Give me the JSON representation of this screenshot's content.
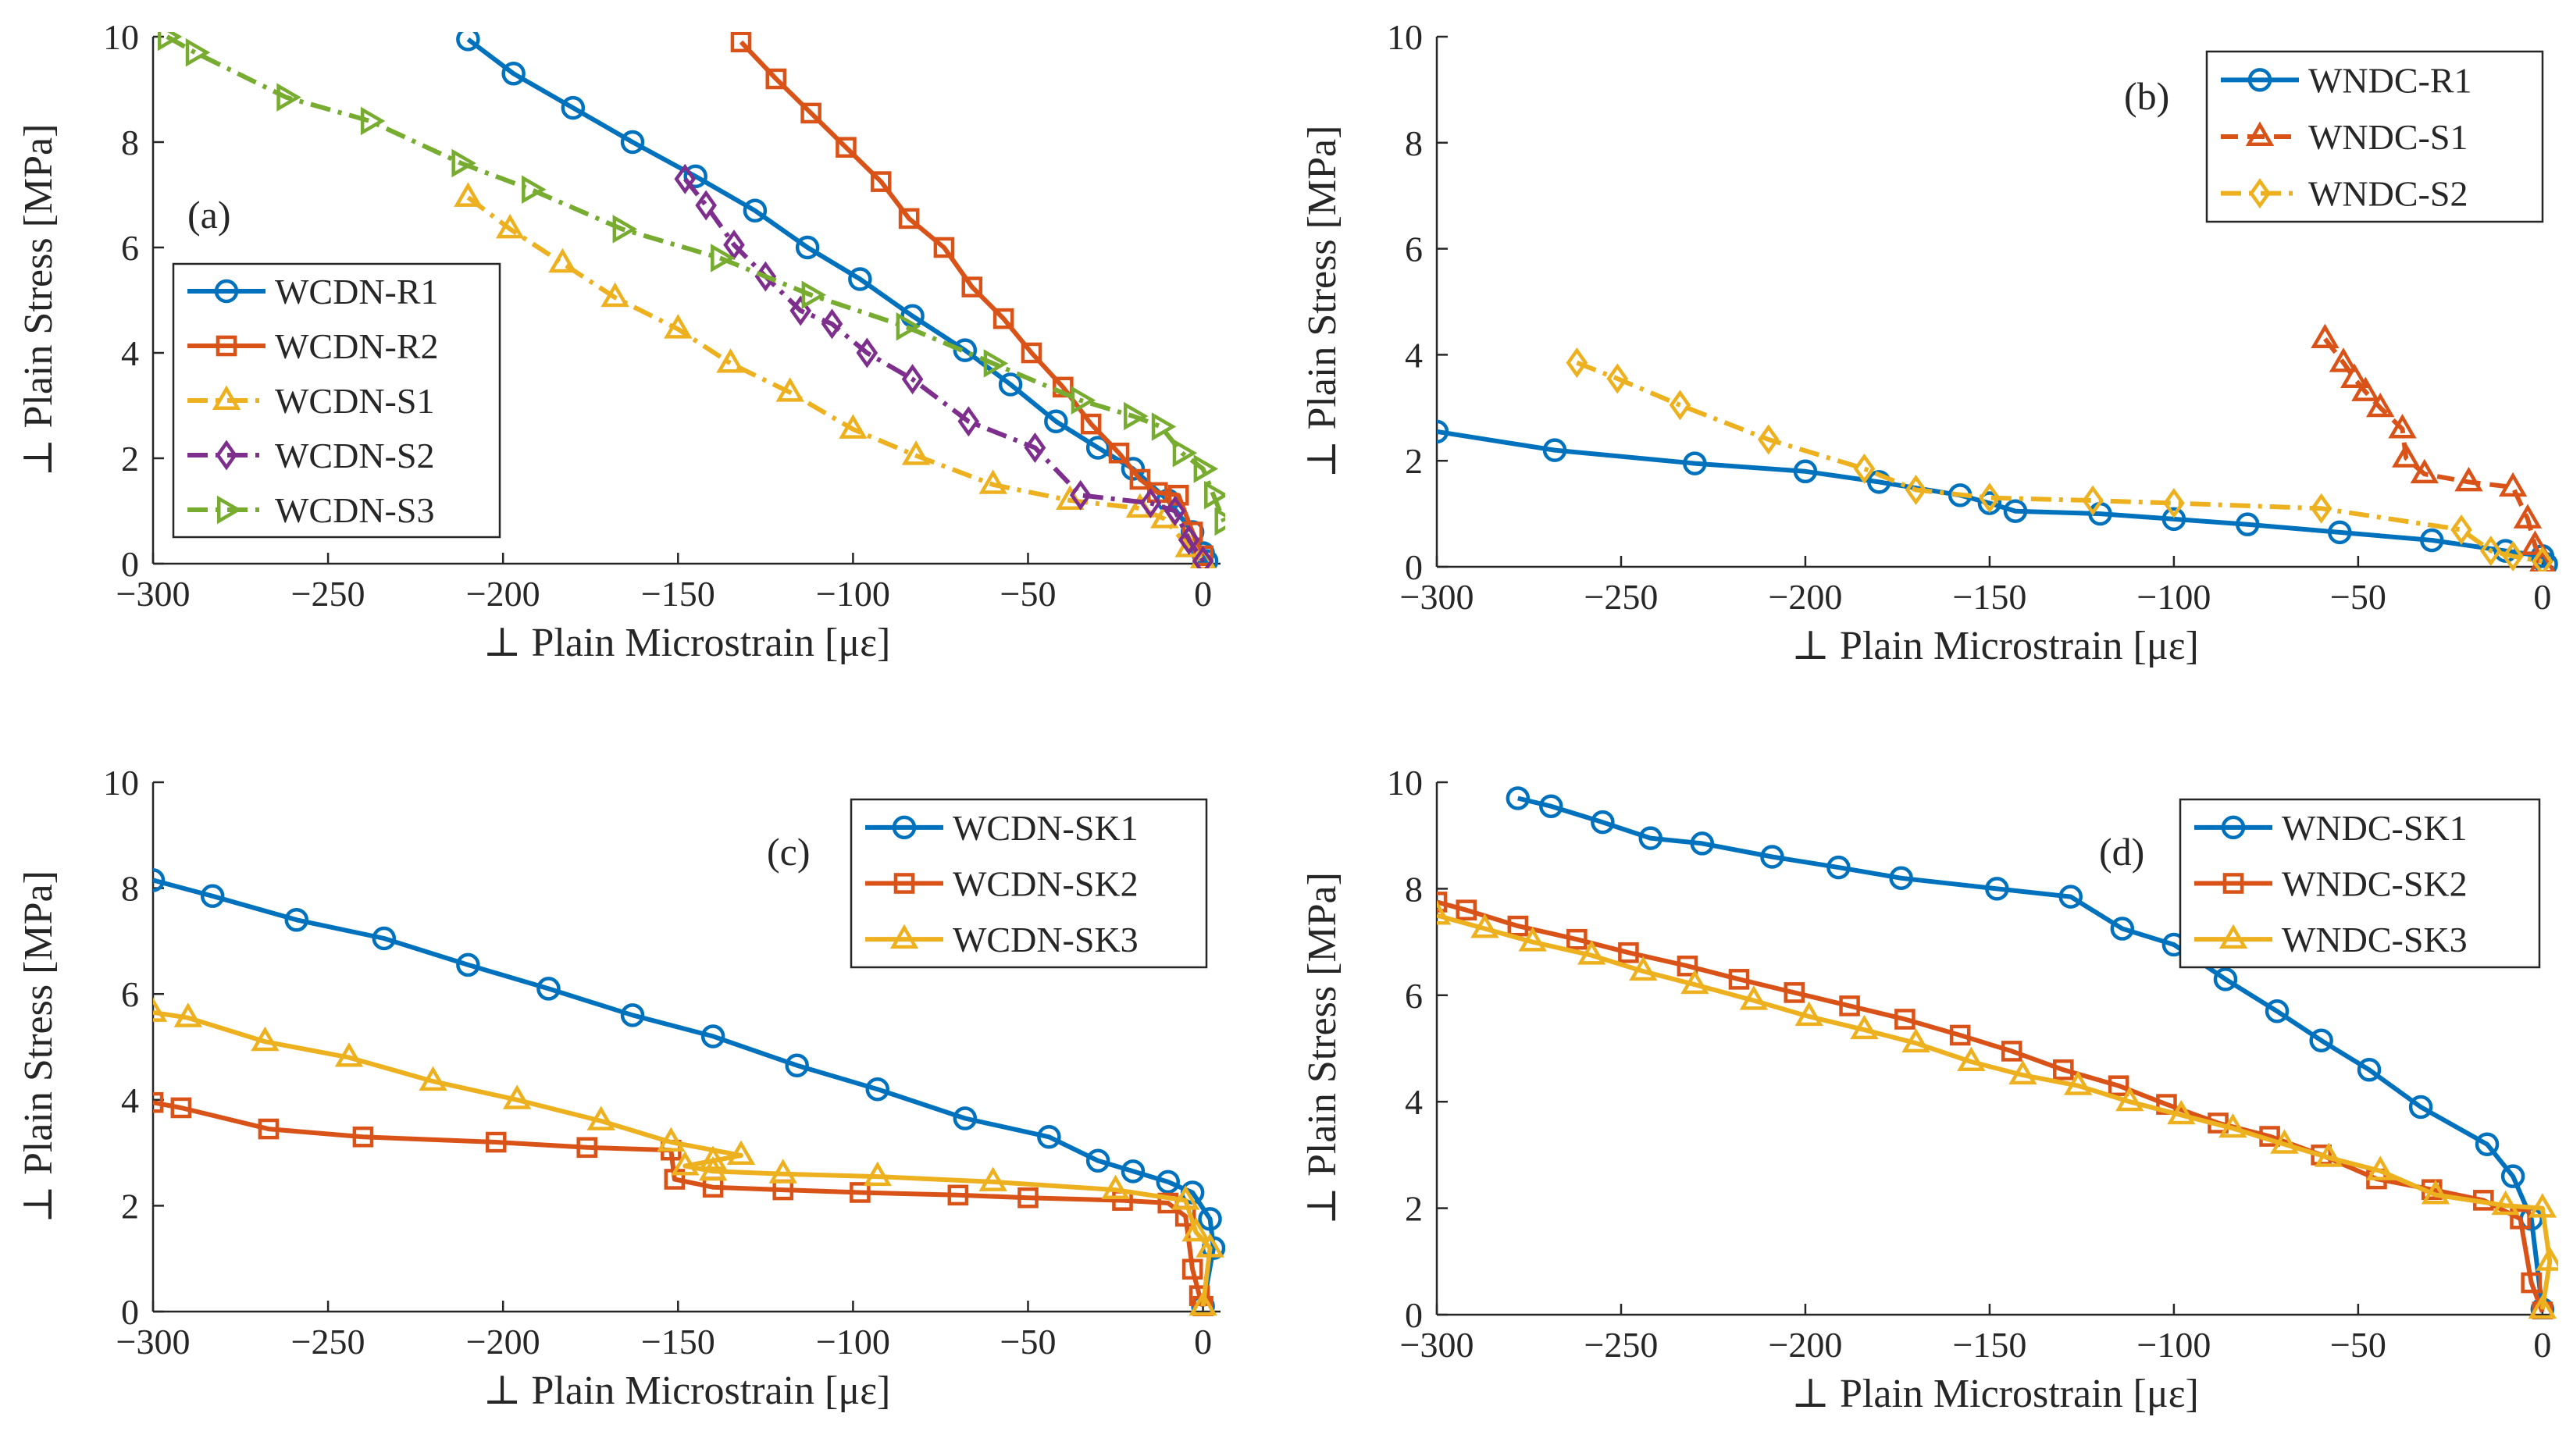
{
  "colors": {
    "blue": "#0072BD",
    "orange": "#D95319",
    "yellow": "#EDB120",
    "purple": "#7E2F8E",
    "green": "#77AC30",
    "axis": "#262626"
  },
  "chart_data": [
    {
      "type": "line",
      "panel_label": "(a)",
      "xlabel": "⊥ Plain Microstrain [με]",
      "ylabel": "⊥ Plain Stress [MPa]",
      "xlim": [
        -300,
        5
      ],
      "ylim": [
        0,
        10
      ],
      "xticks": [
        -300,
        -250,
        -200,
        -150,
        -100,
        -50,
        0
      ],
      "yticks": [
        0,
        2,
        4,
        6,
        8,
        10
      ],
      "legend_position": "middle-left",
      "series": [
        {
          "name": "WCDN-R1",
          "color": "blue",
          "dash": "solid",
          "marker": "circle",
          "x": [
            -210,
            -197,
            -180,
            -163,
            -145,
            -128,
            -113,
            -98,
            -83,
            -68,
            -55,
            -42,
            -30,
            -20,
            -10,
            -3,
            0,
            1
          ],
          "y": [
            9.95,
            9.3,
            8.65,
            8.0,
            7.35,
            6.7,
            6.0,
            5.4,
            4.7,
            4.05,
            3.4,
            2.7,
            2.2,
            1.8,
            1.2,
            0.6,
            0.2,
            0.05
          ]
        },
        {
          "name": "WCDN-R2",
          "color": "orange",
          "dash": "solid",
          "marker": "square",
          "x": [
            -132,
            -122,
            -112,
            -102,
            -92,
            -84,
            -74,
            -66,
            -57,
            -49,
            -40,
            -32,
            -24,
            -18,
            -13,
            -7,
            -3,
            0
          ],
          "y": [
            9.9,
            9.2,
            8.55,
            7.9,
            7.25,
            6.55,
            6.0,
            5.25,
            4.65,
            4.0,
            3.35,
            2.65,
            2.1,
            1.6,
            1.35,
            1.3,
            0.6,
            0.15
          ]
        },
        {
          "name": "WCDN-S1",
          "color": "yellow",
          "dash": "dashdot",
          "marker": "triangle-up",
          "x": [
            -210,
            -198,
            -183,
            -168,
            -150,
            -135,
            -118,
            -100,
            -82,
            -60,
            -38,
            -18,
            -11,
            -4,
            0
          ],
          "y": [
            6.95,
            6.35,
            5.7,
            5.05,
            4.45,
            3.8,
            3.25,
            2.55,
            2.05,
            1.5,
            1.2,
            1.05,
            0.85,
            0.3,
            0.05
          ]
        },
        {
          "name": "WCDN-S2",
          "color": "purple",
          "dash": "dashdot",
          "marker": "diamond",
          "x": [
            -148,
            -142,
            -134,
            -125,
            -115,
            -106,
            -96,
            -83,
            -67,
            -48,
            -35,
            -15,
            -8,
            -4,
            0
          ],
          "y": [
            7.3,
            6.8,
            6.05,
            5.45,
            4.8,
            4.55,
            4.0,
            3.5,
            2.7,
            2.2,
            1.3,
            1.15,
            1.0,
            0.45,
            0.05
          ]
        },
        {
          "name": "WCDN-S3",
          "color": "green",
          "dash": "dashdot",
          "marker": "triangle-right",
          "x": [
            -296,
            -288,
            -262,
            -238,
            -212,
            -192,
            -166,
            -138,
            -112,
            -85,
            -60,
            -35,
            -20,
            -12,
            -6,
            0,
            3,
            6
          ],
          "y": [
            10.0,
            9.7,
            8.85,
            8.4,
            7.6,
            7.1,
            6.35,
            5.8,
            5.1,
            4.5,
            3.8,
            3.1,
            2.8,
            2.6,
            2.1,
            1.8,
            1.3,
            0.8
          ]
        }
      ]
    },
    {
      "type": "line",
      "panel_label": "(b)",
      "xlabel": "⊥ Plain Microstrain [με]",
      "ylabel": "⊥ Plain Stress [MPa]",
      "xlim": [
        -300,
        3
      ],
      "ylim": [
        0,
        10
      ],
      "xticks": [
        -300,
        -250,
        -200,
        -150,
        -100,
        -50,
        0
      ],
      "yticks": [
        0,
        2,
        4,
        6,
        8,
        10
      ],
      "legend_position": "top-right",
      "series": [
        {
          "name": "WNDC-R1",
          "color": "blue",
          "dash": "solid",
          "marker": "circle",
          "x": [
            -300,
            -268,
            -230,
            -200,
            -180,
            -158,
            -150,
            -143,
            -120,
            -100,
            -80,
            -55,
            -30,
            -10,
            0,
            1
          ],
          "y": [
            2.55,
            2.2,
            1.95,
            1.8,
            1.6,
            1.35,
            1.2,
            1.05,
            1.0,
            0.9,
            0.8,
            0.65,
            0.5,
            0.3,
            0.2,
            0.05
          ]
        },
        {
          "name": "WNDC-S1",
          "color": "orange",
          "dash": "dash",
          "marker": "triangle-up",
          "x": [
            -59,
            -54,
            -51,
            -48,
            -44,
            -38,
            -37,
            -32,
            -20,
            -8,
            -4,
            -2,
            0
          ],
          "y": [
            4.3,
            3.85,
            3.55,
            3.3,
            3.0,
            2.6,
            2.05,
            1.75,
            1.6,
            1.5,
            0.9,
            0.4,
            0.05
          ]
        },
        {
          "name": "WNDC-S2",
          "color": "yellow",
          "dash": "dashdot",
          "marker": "diamond",
          "x": [
            -262,
            -251,
            -234,
            -210,
            -184,
            -170,
            -150,
            -122,
            -100,
            -60,
            -22,
            -14,
            -8,
            0
          ],
          "y": [
            3.85,
            3.55,
            3.05,
            2.4,
            1.85,
            1.45,
            1.3,
            1.25,
            1.2,
            1.1,
            0.7,
            0.3,
            0.2,
            0.1
          ]
        }
      ]
    },
    {
      "type": "line",
      "panel_label": "(c)",
      "xlabel": "⊥ Plain Microstrain [με]",
      "ylabel": "⊥ Plain Stress [MPa]",
      "xlim": [
        -300,
        5
      ],
      "ylim": [
        0,
        10
      ],
      "xticks": [
        -300,
        -250,
        -200,
        -150,
        -100,
        -50,
        0
      ],
      "yticks": [
        0,
        2,
        4,
        6,
        8,
        10
      ],
      "legend_position": "top-right",
      "series": [
        {
          "name": "WCDN-SK1",
          "color": "blue",
          "dash": "solid",
          "marker": "circle",
          "x": [
            -300,
            -283,
            -259,
            -234,
            -210,
            -187,
            -163,
            -140,
            -116,
            -93,
            -68,
            -44,
            -30,
            -20,
            -10,
            -3,
            2,
            3,
            0
          ],
          "y": [
            8.15,
            7.85,
            7.4,
            7.05,
            6.55,
            6.1,
            5.6,
            5.2,
            4.65,
            4.2,
            3.65,
            3.3,
            2.85,
            2.65,
            2.45,
            2.25,
            1.75,
            1.2,
            0.1
          ]
        },
        {
          "name": "WCDN-SK2",
          "color": "orange",
          "dash": "solid",
          "marker": "square",
          "x": [
            -300,
            -292,
            -267,
            -240,
            -202,
            -176,
            -152,
            -151,
            -140,
            -120,
            -98,
            -70,
            -50,
            -23,
            -10,
            -5,
            -3,
            -1,
            0
          ],
          "y": [
            3.95,
            3.85,
            3.45,
            3.3,
            3.2,
            3.1,
            3.05,
            2.5,
            2.35,
            2.3,
            2.25,
            2.2,
            2.15,
            2.1,
            2.05,
            1.8,
            0.8,
            0.3,
            0.1
          ]
        },
        {
          "name": "WCDN-SK3",
          "color": "yellow",
          "dash": "solid",
          "marker": "triangle-up",
          "x": [
            -300,
            -290,
            -268,
            -244,
            -220,
            -196,
            -172,
            -152,
            -132,
            -140,
            -148,
            -140,
            -120,
            -93,
            -60,
            -25,
            -5,
            -2,
            2,
            0
          ],
          "y": [
            5.65,
            5.55,
            5.1,
            4.8,
            4.35,
            4.0,
            3.6,
            3.2,
            2.95,
            2.85,
            2.75,
            2.65,
            2.6,
            2.55,
            2.45,
            2.3,
            2.1,
            1.5,
            1.2,
            0.1
          ]
        }
      ]
    },
    {
      "type": "line",
      "panel_label": "(d)",
      "xlabel": "⊥ Plain Microstrain [με]",
      "ylabel": "⊥ Plain Stress [MPa]",
      "xlim": [
        -300,
        3
      ],
      "ylim": [
        0,
        10
      ],
      "xticks": [
        -300,
        -250,
        -200,
        -150,
        -100,
        -50,
        0
      ],
      "yticks": [
        0,
        2,
        4,
        6,
        8,
        10
      ],
      "legend_position": "top-right",
      "series": [
        {
          "name": "WNDC-SK1",
          "color": "blue",
          "dash": "solid",
          "marker": "circle",
          "x": [
            -278,
            -269,
            -255,
            -242,
            -228,
            -209,
            -191,
            -174,
            -148,
            -128,
            -114,
            -100,
            -86,
            -72,
            -60,
            -47,
            -33,
            -15,
            -8,
            -3,
            0
          ],
          "y": [
            9.7,
            9.55,
            9.25,
            8.95,
            8.85,
            8.6,
            8.4,
            8.2,
            8.0,
            7.85,
            7.25,
            6.95,
            6.3,
            5.7,
            5.15,
            4.6,
            3.9,
            3.2,
            2.6,
            1.8,
            0.1
          ]
        },
        {
          "name": "WNDC-SK2",
          "color": "orange",
          "dash": "solid",
          "marker": "square",
          "x": [
            -300,
            -292,
            -278,
            -262,
            -248,
            -232,
            -218,
            -203,
            -188,
            -173,
            -158,
            -144,
            -130,
            -115,
            -102,
            -88,
            -74,
            -60,
            -45,
            -30,
            -16,
            -6,
            -3,
            0
          ],
          "y": [
            7.75,
            7.6,
            7.3,
            7.05,
            6.8,
            6.55,
            6.3,
            6.05,
            5.8,
            5.55,
            5.25,
            4.95,
            4.6,
            4.3,
            3.95,
            3.6,
            3.35,
            3.0,
            2.55,
            2.35,
            2.15,
            1.8,
            0.6,
            0.05
          ]
        },
        {
          "name": "WNDC-SK3",
          "color": "yellow",
          "dash": "solid",
          "marker": "triangle-up",
          "x": [
            -300,
            -287,
            -274,
            -258,
            -244,
            -230,
            -214,
            -199,
            -184,
            -170,
            -155,
            -141,
            -126,
            -112,
            -98,
            -84,
            -70,
            -58,
            -44,
            -29,
            -10,
            0,
            2,
            0
          ],
          "y": [
            7.5,
            7.25,
            7.0,
            6.75,
            6.45,
            6.2,
            5.9,
            5.6,
            5.35,
            5.1,
            4.75,
            4.5,
            4.3,
            4.0,
            3.75,
            3.5,
            3.2,
            2.95,
            2.7,
            2.25,
            2.05,
            2.0,
            1.0,
            0.1
          ]
        }
      ]
    }
  ]
}
